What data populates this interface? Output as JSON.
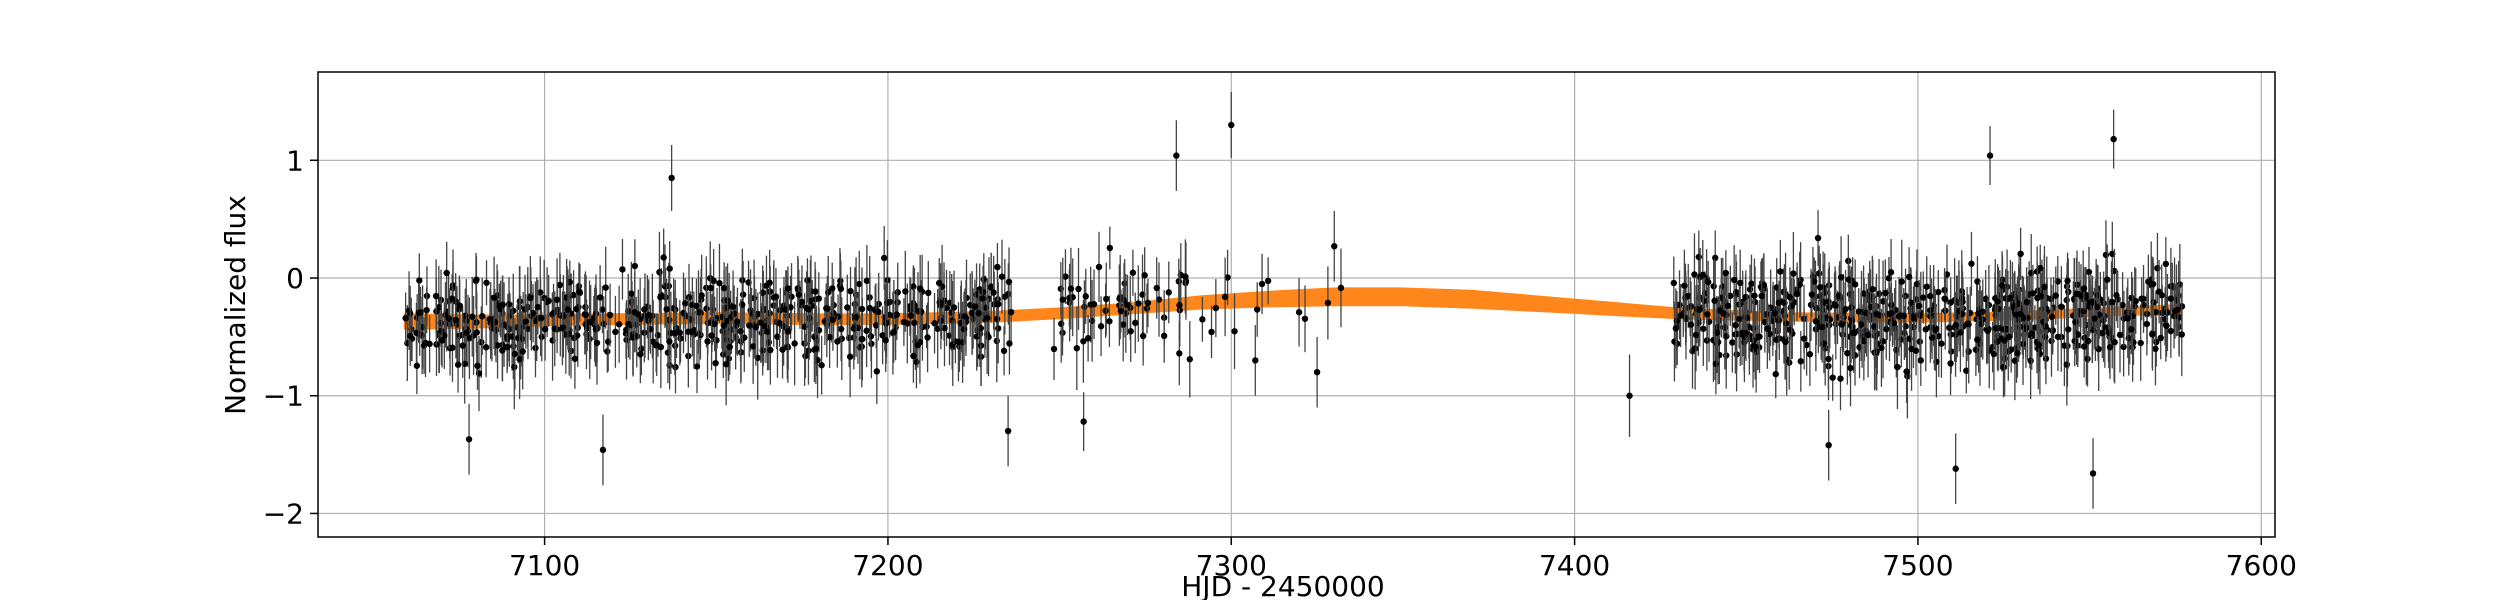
{
  "chart_data": {
    "type": "scatter",
    "title": "",
    "xlabel": "HJD - 2450000",
    "ylabel": "Normalized flux",
    "xlim": [
      7034,
      7604
    ],
    "ylim": [
      -2.2,
      1.75
    ],
    "xticks": [
      7100,
      7200,
      7300,
      7400,
      7500,
      7600
    ],
    "yticks": [
      -2,
      -1,
      0,
      1
    ],
    "xtick_labels": [
      "7100",
      "7200",
      "7300",
      "7400",
      "7500",
      "7600"
    ],
    "ytick_labels": [
      "−2",
      "−1",
      "0",
      "1"
    ],
    "grid": true,
    "legend": "none",
    "observation_ranges": [
      [
        7059,
        7236
      ],
      [
        7248,
        7333
      ],
      [
        7417,
        7577
      ]
    ],
    "observation_count_approx": 1500,
    "typical_flux_scatter": 0.35,
    "typical_error": 0.28,
    "series": [
      {
        "kind": "data points with error bars",
        "color": "#000000",
        "points": [
          {
            "x": 7078,
            "y": -1.37,
            "err": 0.3
          },
          {
            "x": 7117,
            "y": -1.46,
            "err": 0.3
          },
          {
            "x": 7137,
            "y": 0.85,
            "err": 0.28
          },
          {
            "x": 7179,
            "y": -0.6,
            "err": 0.3
          },
          {
            "x": 7235,
            "y": -1.3,
            "err": 0.3
          },
          {
            "x": 7257,
            "y": -1.22,
            "err": 0.25
          },
          {
            "x": 7284,
            "y": 1.04,
            "err": 0.3
          },
          {
            "x": 7300,
            "y": 1.3,
            "err": 0.28
          },
          {
            "x": 7307,
            "y": -0.7,
            "err": 0.3
          },
          {
            "x": 7325,
            "y": -0.8,
            "err": 0.3
          },
          {
            "x": 7330,
            "y": 0.27,
            "err": 0.3
          },
          {
            "x": 7416,
            "y": -1.0,
            "err": 0.35
          },
          {
            "x": 7474,
            "y": -1.42,
            "err": 0.3
          },
          {
            "x": 7511,
            "y": -1.62,
            "err": 0.3
          },
          {
            "x": 7521,
            "y": 1.04,
            "err": 0.25
          },
          {
            "x": 7551,
            "y": -1.66,
            "err": 0.3
          },
          {
            "x": 7557,
            "y": 1.18,
            "err": 0.25
          }
        ]
      },
      {
        "kind": "model band",
        "color": "#ff7f0e",
        "x": [
          7059,
          7080,
          7100,
          7120,
          7150,
          7180,
          7200,
          7230,
          7250,
          7270,
          7290,
          7310,
          7330,
          7350,
          7370,
          7390,
          7410,
          7430,
          7460,
          7500,
          7530,
          7560,
          7577
        ],
        "y": [
          -0.37,
          -0.37,
          -0.36,
          -0.35,
          -0.34,
          -0.35,
          -0.35,
          -0.33,
          -0.3,
          -0.26,
          -0.21,
          -0.18,
          -0.16,
          -0.16,
          -0.18,
          -0.22,
          -0.26,
          -0.3,
          -0.33,
          -0.34,
          -0.32,
          -0.28,
          -0.27
        ],
        "half_width": [
          0.07,
          0.06,
          0.05,
          0.05,
          0.05,
          0.05,
          0.05,
          0.05,
          0.05,
          0.05,
          0.06,
          0.07,
          0.08,
          0.08,
          0.08,
          0.07,
          0.06,
          0.05,
          0.04,
          0.04,
          0.04,
          0.04,
          0.05
        ]
      }
    ]
  }
}
